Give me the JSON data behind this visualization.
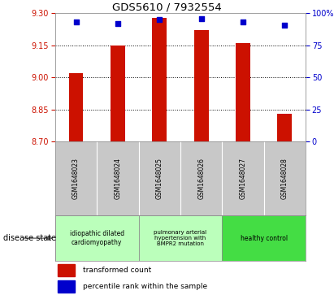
{
  "title": "GDS5610 / 7932554",
  "samples": [
    "GSM1648023",
    "GSM1648024",
    "GSM1648025",
    "GSM1648026",
    "GSM1648027",
    "GSM1648028"
  ],
  "bar_values": [
    9.02,
    9.15,
    9.28,
    9.22,
    9.16,
    8.83
  ],
  "percentile_values": [
    93,
    92,
    95,
    96,
    93,
    91
  ],
  "ylim_left": [
    8.7,
    9.3
  ],
  "ylim_right": [
    0,
    100
  ],
  "yticks_left": [
    8.7,
    8.85,
    9.0,
    9.15,
    9.3
  ],
  "yticks_right": [
    0,
    25,
    50,
    75,
    100
  ],
  "bar_color": "#cc1100",
  "dot_color": "#0000cc",
  "bar_bottom": 8.7,
  "title_fontsize": 9.5,
  "xlabel_disease": "disease state",
  "legend_bar": "transformed count",
  "legend_dot": "percentile rank within the sample",
  "background_color": "#ffffff",
  "tick_color_left": "#cc1100",
  "tick_color_right": "#0000cc",
  "sample_bg_color": "#c8c8c8",
  "disease_group_light": "#ccffcc",
  "disease_group_dark": "#55dd55",
  "disease_groups": [
    {
      "label": "idiopathic dilated\ncardiomyopathy",
      "start": 0,
      "end": 1,
      "color": "#bbffbb"
    },
    {
      "label": "pulmonary arterial\nhypertension with\nBMPR2 mutation",
      "start": 2,
      "end": 3,
      "color": "#bbffbb"
    },
    {
      "label": "healthy control",
      "start": 4,
      "end": 5,
      "color": "#44dd44"
    }
  ]
}
